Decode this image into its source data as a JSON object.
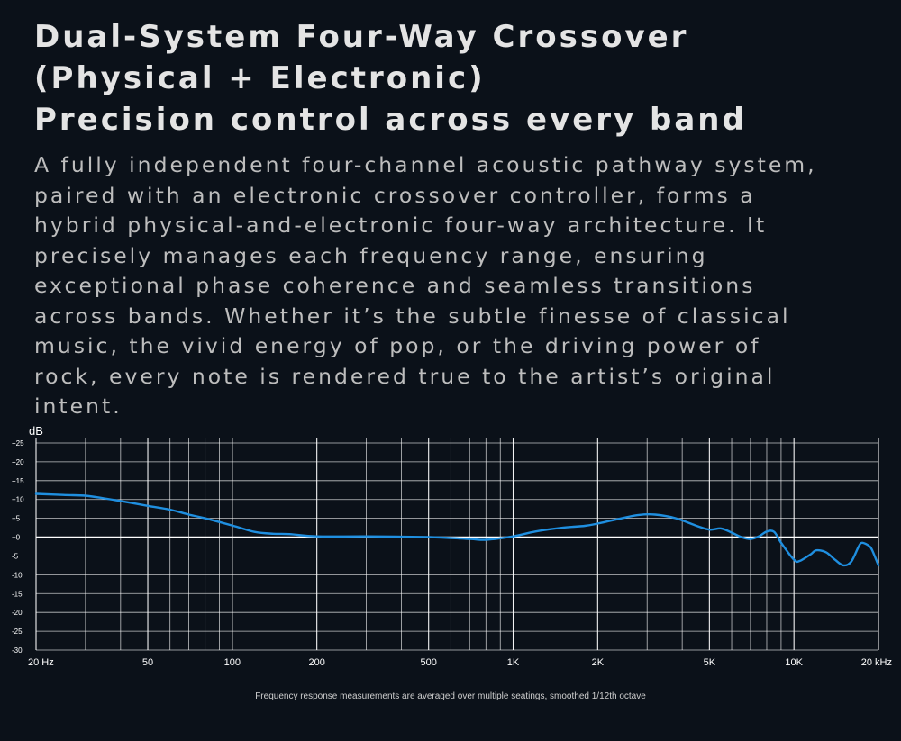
{
  "headline": {
    "line1": "Dual-System Four-Way Crossover",
    "line2": "(Physical + Electronic)",
    "line3": "Precision control across every band"
  },
  "body_text": "A fully independent four-channel acoustic pathway system,\n paired with an electronic crossover controller, forms a\nhybrid physical-and-electronic four-way architecture. It\nprecisely manages each frequency range, ensuring\nexceptional phase coherence and seamless transitions\nacross bands. Whether it’s the subtle finesse of classical\nmusic, the vivid energy of pop, or the driving power of\nrock, every note is rendered true to the artist’s original\nintent.",
  "footnote": "Frequency response measurements are averaged over multiple seatings, smoothed 1/12th octave",
  "colors": {
    "background": "#0b1119",
    "grid": "#ffffff",
    "curve": "#1f8fe0"
  },
  "chart_data": {
    "type": "line",
    "ylabel": "dB",
    "x_scale": "log",
    "xlim": [
      20,
      20000
    ],
    "ylim": [
      -30,
      25
    ],
    "x_ticks": [
      {
        "value": 20,
        "label": "20 Hz"
      },
      {
        "value": 50,
        "label": "50"
      },
      {
        "value": 100,
        "label": "100"
      },
      {
        "value": 200,
        "label": "200"
      },
      {
        "value": 500,
        "label": "500"
      },
      {
        "value": 1000,
        "label": "1K"
      },
      {
        "value": 2000,
        "label": "2K"
      },
      {
        "value": 5000,
        "label": "5K"
      },
      {
        "value": 10000,
        "label": "10K"
      },
      {
        "value": 20000,
        "label": "20 kHz"
      }
    ],
    "x_gridlines": [
      20,
      30,
      40,
      50,
      60,
      70,
      80,
      90,
      100,
      200,
      300,
      400,
      500,
      600,
      700,
      800,
      900,
      1000,
      2000,
      3000,
      4000,
      5000,
      6000,
      7000,
      8000,
      9000,
      10000,
      20000
    ],
    "y_ticks": [
      {
        "value": 25,
        "label": "+25"
      },
      {
        "value": 20,
        "label": "+20"
      },
      {
        "value": 15,
        "label": "+15"
      },
      {
        "value": 10,
        "label": "+10"
      },
      {
        "value": 5,
        "label": "+5"
      },
      {
        "value": 0,
        "label": "+0"
      },
      {
        "value": -5,
        "label": "-5"
      },
      {
        "value": -10,
        "label": "-10"
      },
      {
        "value": -15,
        "label": "-15"
      },
      {
        "value": -20,
        "label": "-20"
      },
      {
        "value": -25,
        "label": "-25"
      },
      {
        "value": -30,
        "label": "-30"
      }
    ],
    "grid": true,
    "series": [
      {
        "points": [
          [
            20,
            11.5
          ],
          [
            25,
            11.2
          ],
          [
            30,
            11.0
          ],
          [
            35,
            10.3
          ],
          [
            40,
            9.6
          ],
          [
            50,
            8.3
          ],
          [
            60,
            7.3
          ],
          [
            70,
            6.0
          ],
          [
            80,
            5.0
          ],
          [
            100,
            3.1
          ],
          [
            120,
            1.4
          ],
          [
            140,
            0.9
          ],
          [
            160,
            0.8
          ],
          [
            200,
            0.2
          ],
          [
            300,
            0.2
          ],
          [
            500,
            0.0
          ],
          [
            700,
            -0.5
          ],
          [
            800,
            -0.7
          ],
          [
            1000,
            0.2
          ],
          [
            1200,
            1.5
          ],
          [
            1500,
            2.5
          ],
          [
            1800,
            3.0
          ],
          [
            2000,
            3.6
          ],
          [
            2500,
            5.2
          ],
          [
            2800,
            5.9
          ],
          [
            3200,
            6.0
          ],
          [
            3800,
            5.0
          ],
          [
            4500,
            3.0
          ],
          [
            5000,
            2.0
          ],
          [
            5500,
            2.3
          ],
          [
            6000,
            1.2
          ],
          [
            6500,
            0.0
          ],
          [
            7000,
            -0.5
          ],
          [
            7500,
            0.2
          ],
          [
            8000,
            1.5
          ],
          [
            8500,
            1.4
          ],
          [
            9000,
            -1.5
          ],
          [
            10000,
            -6.0
          ],
          [
            10500,
            -6.3
          ],
          [
            11500,
            -4.5
          ],
          [
            12000,
            -3.5
          ],
          [
            13000,
            -4.0
          ],
          [
            14000,
            -6.0
          ],
          [
            15000,
            -7.5
          ],
          [
            16000,
            -6.5
          ],
          [
            17000,
            -2.5
          ],
          [
            17500,
            -1.5
          ],
          [
            18500,
            -2.3
          ],
          [
            19000,
            -3.5
          ],
          [
            20000,
            -7.5
          ]
        ]
      }
    ]
  }
}
